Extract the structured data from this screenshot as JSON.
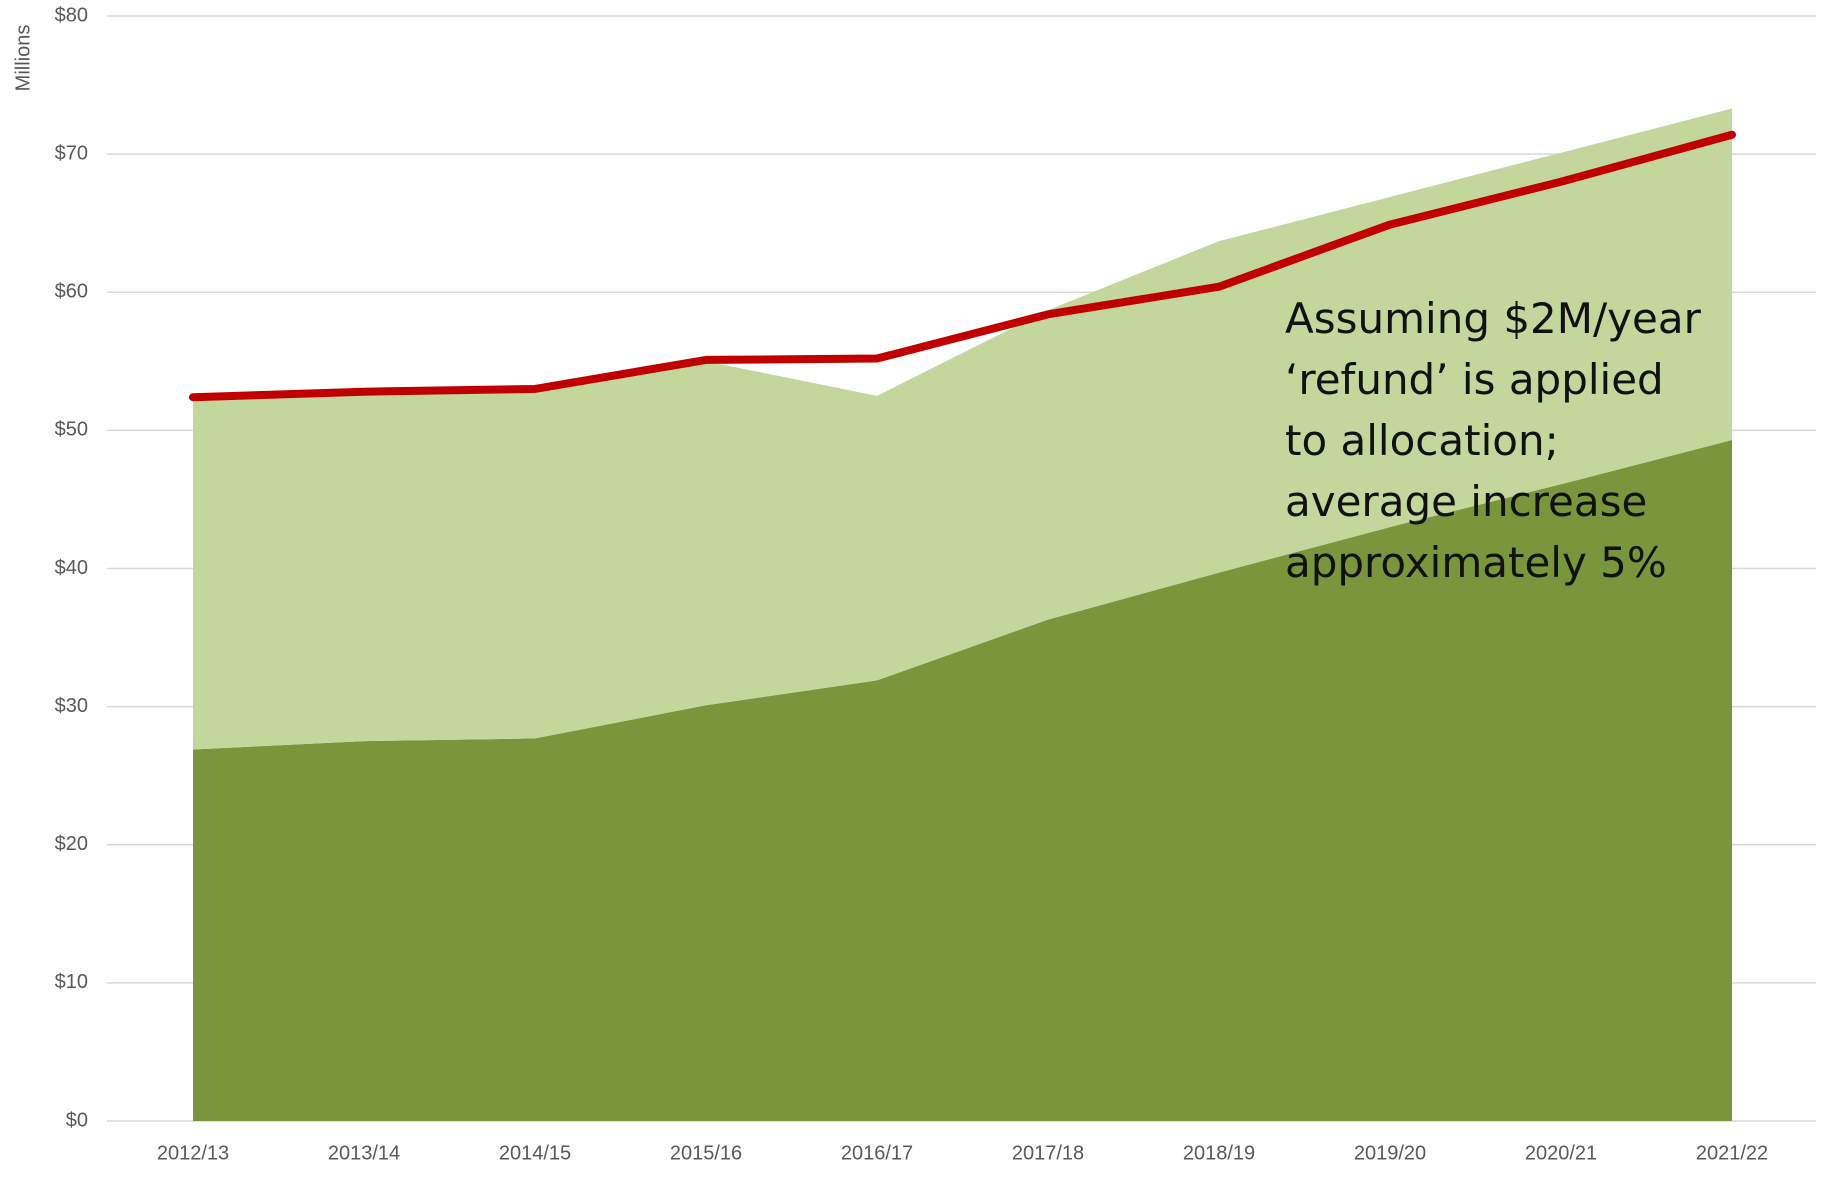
{
  "chart_data": {
    "type": "stacked-area-line",
    "y_label": "Millions",
    "annotation": [
      "Assuming $2M/year",
      "‘refund’ is applied",
      "to allocation;",
      "average increase",
      "approximately 5%"
    ],
    "categories": [
      "2012/13",
      "2013/14",
      "2014/15",
      "2015/16",
      "2016/17",
      "2017/18",
      "2018/19",
      "2019/20",
      "2020/21",
      "2021/22"
    ],
    "series": [
      {
        "kind": "area",
        "color": "#7a963c",
        "values": [
          26.9,
          27.5,
          27.7,
          30.1,
          31.9,
          36.3,
          39.7,
          43.0,
          46.1,
          49.3
        ]
      },
      {
        "kind": "area",
        "color": "#c3d69b",
        "values": [
          25.5,
          25.1,
          25.1,
          24.9,
          20.6,
          22.4,
          24.0,
          23.9,
          24.0,
          24.0
        ]
      },
      {
        "kind": "line",
        "color": "#c00000",
        "values": [
          52.4,
          52.8,
          53.0,
          55.1,
          55.2,
          58.4,
          60.4,
          64.9,
          68.0,
          71.4
        ]
      }
    ],
    "ylim": [
      0,
      80
    ],
    "yticks": [
      {
        "value": 0,
        "label": "$0"
      },
      {
        "value": 10,
        "label": "$10"
      },
      {
        "value": 20,
        "label": "$20"
      },
      {
        "value": 30,
        "label": "$30"
      },
      {
        "value": 40,
        "label": "$40"
      },
      {
        "value": 50,
        "label": "$50"
      },
      {
        "value": 60,
        "label": "$60"
      },
      {
        "value": 70,
        "label": "$70"
      },
      {
        "value": 80,
        "label": "$80"
      }
    ],
    "grid": true
  }
}
